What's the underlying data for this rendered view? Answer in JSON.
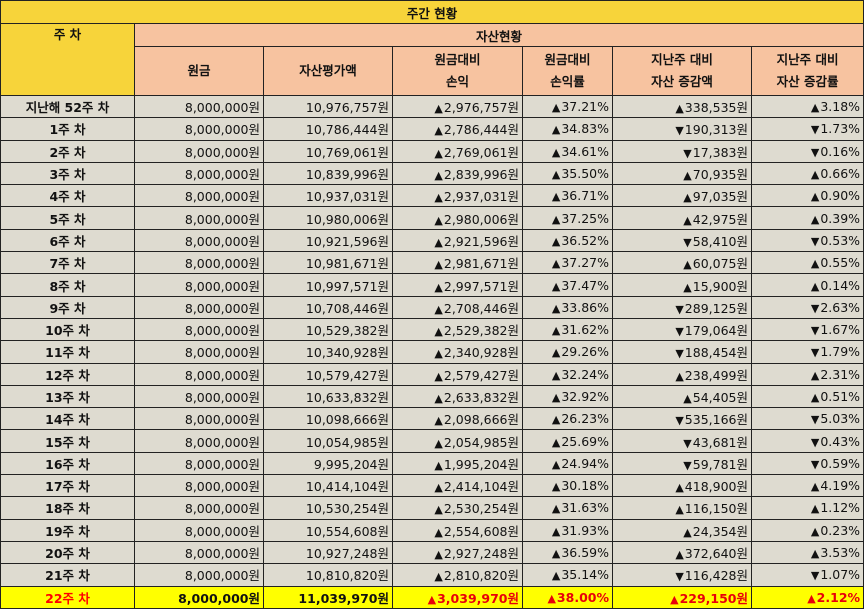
{
  "title": "주간 현황",
  "header": {
    "week": "주 차",
    "group": "자산현황",
    "columns": [
      [
        "원금"
      ],
      [
        "자산평가액"
      ],
      [
        "원금대비",
        "손익"
      ],
      [
        "원금대비",
        "손익률"
      ],
      [
        "지난주 대비",
        "자산 증감액"
      ],
      [
        "지난주 대비",
        "자산 증감률"
      ]
    ]
  },
  "rows": [
    {
      "week": "지난해 52주 차",
      "principal": "8,000,000원",
      "asset": "10,976,757원",
      "pl": "2,976,757원",
      "plDir": "up",
      "plRate": "37.21%",
      "rateDir": "up",
      "chg": "338,535원",
      "chgDir": "up",
      "chgRate": "3.18%",
      "chgRateDir": "up"
    },
    {
      "week": "1주 차",
      "principal": "8,000,000원",
      "asset": "10,786,444원",
      "pl": "2,786,444원",
      "plDir": "up",
      "plRate": "34.83%",
      "rateDir": "up",
      "chg": "190,313원",
      "chgDir": "down",
      "chgRate": "1.73%",
      "chgRateDir": "down"
    },
    {
      "week": "2주 차",
      "principal": "8,000,000원",
      "asset": "10,769,061원",
      "pl": "2,769,061원",
      "plDir": "up",
      "plRate": "34.61%",
      "rateDir": "up",
      "chg": "17,383원",
      "chgDir": "down",
      "chgRate": "0.16%",
      "chgRateDir": "down"
    },
    {
      "week": "3주 차",
      "principal": "8,000,000원",
      "asset": "10,839,996원",
      "pl": "2,839,996원",
      "plDir": "up",
      "plRate": "35.50%",
      "rateDir": "up",
      "chg": "70,935원",
      "chgDir": "up",
      "chgRate": "0.66%",
      "chgRateDir": "up"
    },
    {
      "week": "4주 차",
      "principal": "8,000,000원",
      "asset": "10,937,031원",
      "pl": "2,937,031원",
      "plDir": "up",
      "plRate": "36.71%",
      "rateDir": "up",
      "chg": "97,035원",
      "chgDir": "up",
      "chgRate": "0.90%",
      "chgRateDir": "up"
    },
    {
      "week": "5주 차",
      "principal": "8,000,000원",
      "asset": "10,980,006원",
      "pl": "2,980,006원",
      "plDir": "up",
      "plRate": "37.25%",
      "rateDir": "up",
      "chg": "42,975원",
      "chgDir": "up",
      "chgRate": "0.39%",
      "chgRateDir": "up"
    },
    {
      "week": "6주 차",
      "principal": "8,000,000원",
      "asset": "10,921,596원",
      "pl": "2,921,596원",
      "plDir": "up",
      "plRate": "36.52%",
      "rateDir": "up",
      "chg": "58,410원",
      "chgDir": "down",
      "chgRate": "0.53%",
      "chgRateDir": "down"
    },
    {
      "week": "7주 차",
      "principal": "8,000,000원",
      "asset": "10,981,671원",
      "pl": "2,981,671원",
      "plDir": "up",
      "plRate": "37.27%",
      "rateDir": "up",
      "chg": "60,075원",
      "chgDir": "up",
      "chgRate": "0.55%",
      "chgRateDir": "up"
    },
    {
      "week": "8주 차",
      "principal": "8,000,000원",
      "asset": "10,997,571원",
      "pl": "2,997,571원",
      "plDir": "up",
      "plRate": "37.47%",
      "rateDir": "up",
      "chg": "15,900원",
      "chgDir": "up",
      "chgRate": "0.14%",
      "chgRateDir": "up"
    },
    {
      "week": "9주 차",
      "principal": "8,000,000원",
      "asset": "10,708,446원",
      "pl": "2,708,446원",
      "plDir": "up",
      "plRate": "33.86%",
      "rateDir": "up",
      "chg": "289,125원",
      "chgDir": "down",
      "chgRate": "2.63%",
      "chgRateDir": "down"
    },
    {
      "week": "10주 차",
      "principal": "8,000,000원",
      "asset": "10,529,382원",
      "pl": "2,529,382원",
      "plDir": "up",
      "plRate": "31.62%",
      "rateDir": "up",
      "chg": "179,064원",
      "chgDir": "down",
      "chgRate": "1.67%",
      "chgRateDir": "down"
    },
    {
      "week": "11주 차",
      "principal": "8,000,000원",
      "asset": "10,340,928원",
      "pl": "2,340,928원",
      "plDir": "up",
      "plRate": "29.26%",
      "rateDir": "up",
      "chg": "188,454원",
      "chgDir": "down",
      "chgRate": "1.79%",
      "chgRateDir": "down"
    },
    {
      "week": "12주 차",
      "principal": "8,000,000원",
      "asset": "10,579,427원",
      "pl": "2,579,427원",
      "plDir": "up",
      "plRate": "32.24%",
      "rateDir": "up",
      "chg": "238,499원",
      "chgDir": "up",
      "chgRate": "2.31%",
      "chgRateDir": "up"
    },
    {
      "week": "13주 차",
      "principal": "8,000,000원",
      "asset": "10,633,832원",
      "pl": "2,633,832원",
      "plDir": "up",
      "plRate": "32.92%",
      "rateDir": "up",
      "chg": "54,405원",
      "chgDir": "up",
      "chgRate": "0.51%",
      "chgRateDir": "up"
    },
    {
      "week": "14주 차",
      "principal": "8,000,000원",
      "asset": "10,098,666원",
      "pl": "2,098,666원",
      "plDir": "up",
      "plRate": "26.23%",
      "rateDir": "up",
      "chg": "535,166원",
      "chgDir": "down",
      "chgRate": "5.03%",
      "chgRateDir": "down"
    },
    {
      "week": "15주 차",
      "principal": "8,000,000원",
      "asset": "10,054,985원",
      "pl": "2,054,985원",
      "plDir": "up",
      "plRate": "25.69%",
      "rateDir": "up",
      "chg": "43,681원",
      "chgDir": "down",
      "chgRate": "0.43%",
      "chgRateDir": "down"
    },
    {
      "week": "16주 차",
      "principal": "8,000,000원",
      "asset": "9,995,204원",
      "pl": "1,995,204원",
      "plDir": "up",
      "plRate": "24.94%",
      "rateDir": "up",
      "chg": "59,781원",
      "chgDir": "down",
      "chgRate": "0.59%",
      "chgRateDir": "down"
    },
    {
      "week": "17주 차",
      "principal": "8,000,000원",
      "asset": "10,414,104원",
      "pl": "2,414,104원",
      "plDir": "up",
      "plRate": "30.18%",
      "rateDir": "up",
      "chg": "418,900원",
      "chgDir": "up",
      "chgRate": "4.19%",
      "chgRateDir": "up"
    },
    {
      "week": "18주 차",
      "principal": "8,000,000원",
      "asset": "10,530,254원",
      "pl": "2,530,254원",
      "plDir": "up",
      "plRate": "31.63%",
      "rateDir": "up",
      "chg": "116,150원",
      "chgDir": "up",
      "chgRate": "1.12%",
      "chgRateDir": "up"
    },
    {
      "week": "19주 차",
      "principal": "8,000,000원",
      "asset": "10,554,608원",
      "pl": "2,554,608원",
      "plDir": "up",
      "plRate": "31.93%",
      "rateDir": "up",
      "chg": "24,354원",
      "chgDir": "up",
      "chgRate": "0.23%",
      "chgRateDir": "up"
    },
    {
      "week": "20주 차",
      "principal": "8,000,000원",
      "asset": "10,927,248원",
      "pl": "2,927,248원",
      "plDir": "up",
      "plRate": "36.59%",
      "rateDir": "up",
      "chg": "372,640원",
      "chgDir": "up",
      "chgRate": "3.53%",
      "chgRateDir": "up"
    },
    {
      "week": "21주 차",
      "principal": "8,000,000원",
      "asset": "10,810,820원",
      "pl": "2,810,820원",
      "plDir": "up",
      "plRate": "35.14%",
      "rateDir": "up",
      "chg": "116,428원",
      "chgDir": "down",
      "chgRate": "1.07%",
      "chgRateDir": "down"
    },
    {
      "week": "22주 차",
      "principal": "8,000,000원",
      "asset": "11,039,970원",
      "pl": "3,039,970원",
      "plDir": "up",
      "plRate": "38.00%",
      "rateDir": "up",
      "chg": "229,150원",
      "chgDir": "up",
      "chgRate": "2.12%",
      "chgRateDir": "up",
      "highlight": true
    }
  ],
  "arrows": {
    "up": "▲",
    "down": "▼"
  },
  "colors": {
    "up": "#e8000b",
    "down": "#1020d8",
    "header": "#f7d43a",
    "columnHeader": "#f7c3a0",
    "cell": "#dedbd0",
    "highlight": "#ffff00"
  }
}
